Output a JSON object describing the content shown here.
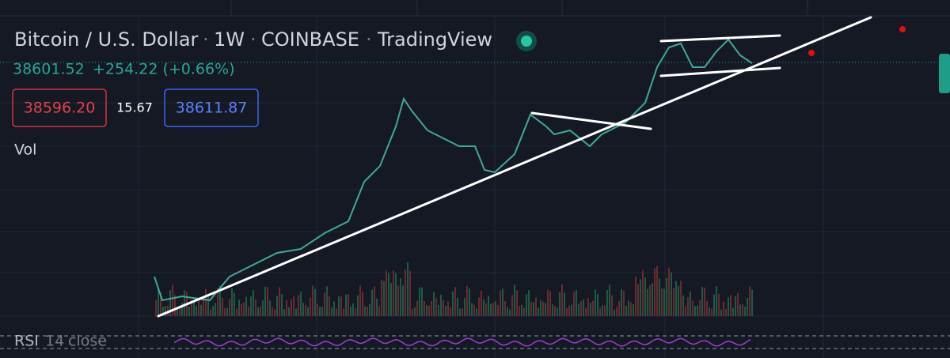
{
  "header": {
    "symbol": "Bitcoin / U.S. Dollar",
    "separator": "·",
    "interval": "1W",
    "exchange": "COINBASE",
    "source": "TradingView"
  },
  "quote": {
    "last": "38601.52",
    "change": "+254.22 (+0.66%)"
  },
  "orderbox": {
    "sell": "38596.20",
    "spread": "15.67",
    "buy": "38611.87"
  },
  "volume": {
    "label": "Vol"
  },
  "rsi": {
    "name": "RSI",
    "length": "14",
    "source": "close"
  }
}
